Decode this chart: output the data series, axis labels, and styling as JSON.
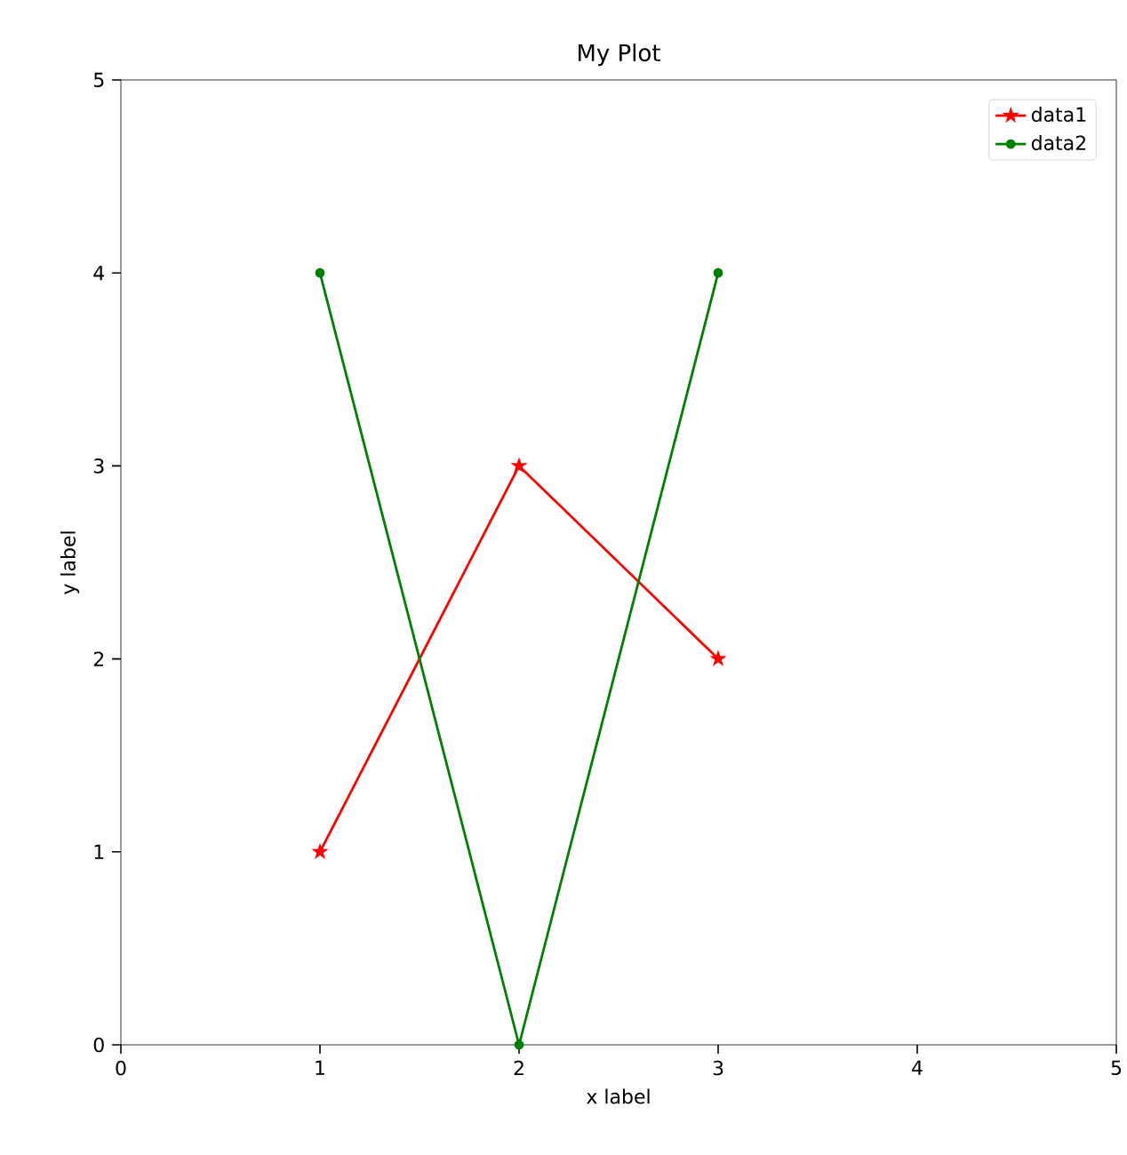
{
  "chart_data": {
    "type": "line",
    "title": "My Plot",
    "xlabel": "x label",
    "ylabel": "y label",
    "x": [
      1,
      2,
      3
    ],
    "series": [
      {
        "name": "data1",
        "color": "#ff0000",
        "values": [
          1,
          3,
          2
        ],
        "marker": "star"
      },
      {
        "name": "data2",
        "color": "#008000",
        "values": [
          4,
          0,
          4
        ],
        "marker": "circle"
      }
    ],
    "xlim": [
      0,
      5
    ],
    "ylim": [
      0,
      5
    ],
    "xticks": [
      0,
      1,
      2,
      3,
      4,
      5
    ],
    "yticks": [
      0,
      1,
      2,
      3,
      4,
      5
    ],
    "legend": "top right",
    "grid": false,
    "line_style": "solid"
  }
}
